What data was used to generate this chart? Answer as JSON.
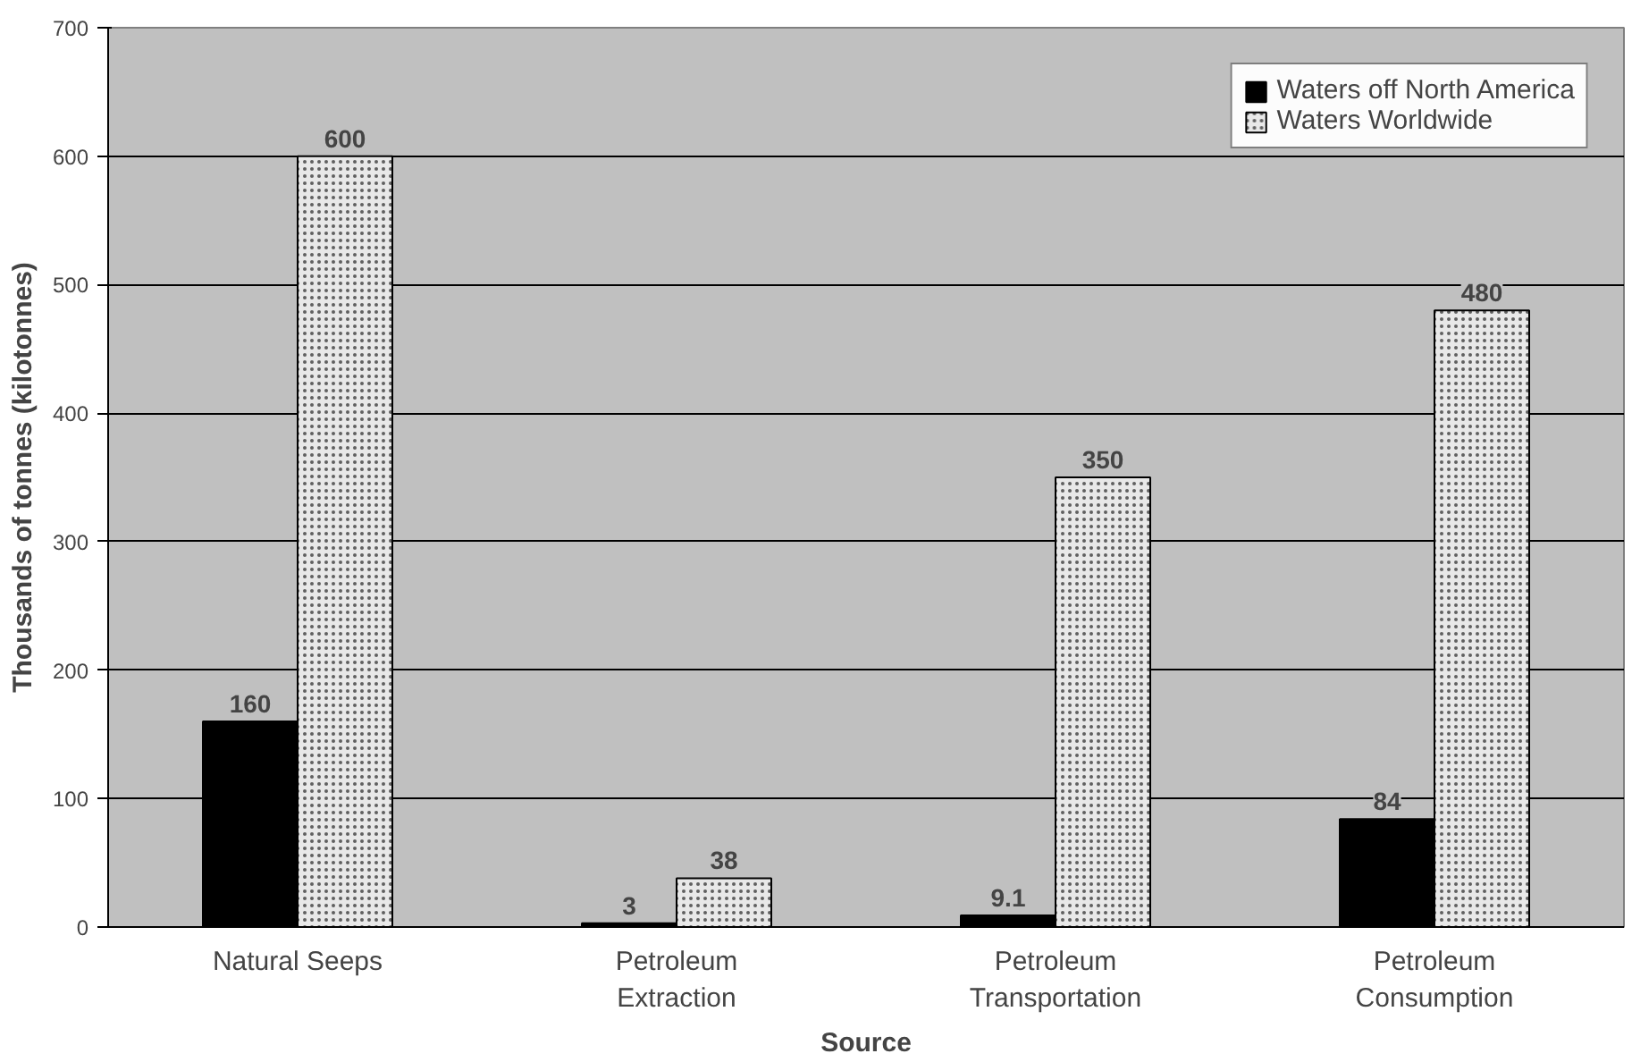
{
  "chart_data": {
    "type": "bar",
    "xlabel": "Source",
    "ylabel": "Thousands of tonnes (kilotonnes)",
    "categories": [
      "Natural Seeps",
      "Petroleum\nExtraction",
      "Petroleum\nTransportation",
      "Petroleum\nConsumption"
    ],
    "series": [
      {
        "name": "Waters off North America",
        "color": "#000000",
        "values": [
          160,
          3,
          9.1,
          84
        ]
      },
      {
        "name": "Waters Worldwide",
        "color": "#e8e8e8",
        "values": [
          600,
          38,
          350,
          480
        ]
      }
    ],
    "ylim": [
      0,
      700
    ],
    "yticks": [
      0,
      100,
      200,
      300,
      400,
      500,
      600,
      700
    ],
    "grid": "y",
    "legend": "top right",
    "data_labels": true
  }
}
